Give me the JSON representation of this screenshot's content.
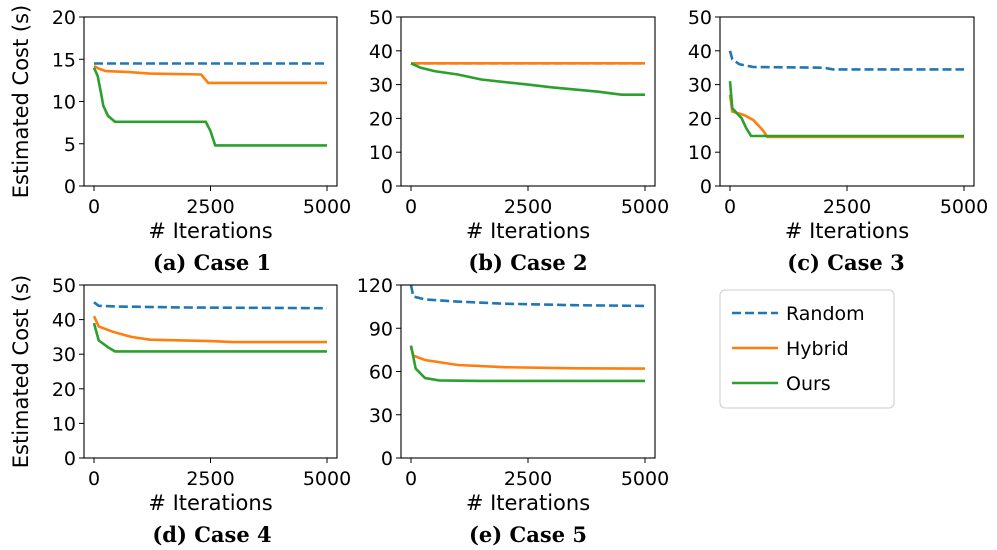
{
  "colors": {
    "random": "#1f77b4",
    "hybrid": "#ff7f0e",
    "ours": "#2ca02c"
  },
  "legend": {
    "placement": "right",
    "entries": [
      "Random",
      "Hybrid",
      "Ours"
    ]
  },
  "chart_data": [
    {
      "type": "line",
      "caption": "(a) Case 1",
      "xlabel": "# Iterations",
      "ylabel": "Estimated Cost (s)",
      "xlim": [
        0,
        5000
      ],
      "ylim": [
        0,
        20
      ],
      "xticks": [
        0,
        2500,
        5000
      ],
      "yticks": [
        0,
        5,
        10,
        15,
        20
      ],
      "series": [
        {
          "name": "Random",
          "style": "dashed",
          "points": [
            [
              0,
              14.5
            ],
            [
              5000,
              14.5
            ]
          ]
        },
        {
          "name": "Hybrid",
          "style": "solid",
          "points": [
            [
              0,
              14.2
            ],
            [
              100,
              13.9
            ],
            [
              250,
              13.6
            ],
            [
              700,
              13.5
            ],
            [
              1200,
              13.3
            ],
            [
              2300,
              13.2
            ],
            [
              2450,
              12.2
            ],
            [
              5000,
              12.2
            ]
          ]
        },
        {
          "name": "Ours",
          "style": "solid",
          "points": [
            [
              0,
              14.0
            ],
            [
              80,
              13.0
            ],
            [
              150,
              11.0
            ],
            [
              200,
              9.5
            ],
            [
              300,
              8.3
            ],
            [
              450,
              7.6
            ],
            [
              2400,
              7.6
            ],
            [
              2500,
              6.5
            ],
            [
              2600,
              4.8
            ],
            [
              5000,
              4.8
            ]
          ]
        }
      ]
    },
    {
      "type": "line",
      "caption": "(b) Case 2",
      "xlabel": "# Iterations",
      "ylabel": "",
      "xlim": [
        0,
        5000
      ],
      "ylim": [
        0,
        50
      ],
      "xticks": [
        0,
        2500,
        5000
      ],
      "yticks": [
        0,
        10,
        20,
        30,
        40,
        50
      ],
      "series": [
        {
          "name": "Random",
          "style": "dashed",
          "points": [
            [
              0,
              36.3
            ],
            [
              5000,
              36.3
            ]
          ]
        },
        {
          "name": "Hybrid",
          "style": "solid",
          "points": [
            [
              0,
              36.3
            ],
            [
              5000,
              36.3
            ]
          ]
        },
        {
          "name": "Ours",
          "style": "solid",
          "points": [
            [
              0,
              36.3
            ],
            [
              200,
              35.0
            ],
            [
              500,
              34.0
            ],
            [
              1000,
              33.0
            ],
            [
              1500,
              31.5
            ],
            [
              2500,
              30.0
            ],
            [
              3000,
              29.2
            ],
            [
              4000,
              27.9
            ],
            [
              4500,
              27.0
            ],
            [
              5000,
              27.0
            ]
          ]
        }
      ]
    },
    {
      "type": "line",
      "caption": "(c) Case 3",
      "xlabel": "# Iterations",
      "ylabel": "",
      "xlim": [
        0,
        5000
      ],
      "ylim": [
        0,
        50
      ],
      "xticks": [
        0,
        2500,
        5000
      ],
      "yticks": [
        0,
        10,
        20,
        30,
        40,
        50
      ],
      "series": [
        {
          "name": "Random",
          "style": "dashed",
          "points": [
            [
              0,
              40
            ],
            [
              50,
              37.5
            ],
            [
              200,
              36.0
            ],
            [
              500,
              35.2
            ],
            [
              2000,
              35.0
            ],
            [
              2200,
              34.5
            ],
            [
              5000,
              34.5
            ]
          ]
        },
        {
          "name": "Hybrid",
          "style": "solid",
          "points": [
            [
              0,
              27
            ],
            [
              50,
              22
            ],
            [
              300,
              21
            ],
            [
              500,
              19.5
            ],
            [
              700,
              16.5
            ],
            [
              800,
              14.5
            ],
            [
              5000,
              14.5
            ]
          ]
        },
        {
          "name": "Ours",
          "style": "solid",
          "points": [
            [
              0,
              31
            ],
            [
              50,
              23
            ],
            [
              150,
              21.5
            ],
            [
              250,
              20
            ],
            [
              350,
              17
            ],
            [
              450,
              14.8
            ],
            [
              5000,
              14.8
            ]
          ]
        }
      ]
    },
    {
      "type": "line",
      "caption": "(d) Case 4",
      "xlabel": "# Iterations",
      "ylabel": "Estimated Cost (s)",
      "xlim": [
        0,
        5000
      ],
      "ylim": [
        0,
        50
      ],
      "xticks": [
        0,
        2500,
        5000
      ],
      "yticks": [
        0,
        10,
        20,
        30,
        40,
        50
      ],
      "series": [
        {
          "name": "Random",
          "style": "dashed",
          "points": [
            [
              0,
              45
            ],
            [
              100,
              44.0
            ],
            [
              500,
              43.8
            ],
            [
              2000,
              43.5
            ],
            [
              5000,
              43.3
            ]
          ]
        },
        {
          "name": "Hybrid",
          "style": "solid",
          "points": [
            [
              0,
              41
            ],
            [
              100,
              38
            ],
            [
              400,
              36.5
            ],
            [
              800,
              35
            ],
            [
              1200,
              34.2
            ],
            [
              2500,
              33.8
            ],
            [
              3000,
              33.5
            ],
            [
              5000,
              33.5
            ]
          ]
        },
        {
          "name": "Ours",
          "style": "solid",
          "points": [
            [
              0,
              39
            ],
            [
              100,
              34
            ],
            [
              300,
              32
            ],
            [
              450,
              30.8
            ],
            [
              5000,
              30.8
            ]
          ]
        }
      ]
    },
    {
      "type": "line",
      "caption": "(e) Case 5",
      "xlabel": "# Iterations",
      "ylabel": "",
      "xlim": [
        0,
        5000
      ],
      "ylim": [
        0,
        120
      ],
      "xticks": [
        0,
        2500,
        5000
      ],
      "yticks": [
        0,
        30,
        60,
        90,
        120
      ],
      "series": [
        {
          "name": "Random",
          "style": "dashed",
          "points": [
            [
              0,
              120
            ],
            [
              50,
              112
            ],
            [
              300,
              110
            ],
            [
              1000,
              108.5
            ],
            [
              2000,
              107
            ],
            [
              3500,
              106
            ],
            [
              5000,
              105.5
            ]
          ]
        },
        {
          "name": "Hybrid",
          "style": "solid",
          "points": [
            [
              0,
              77
            ],
            [
              50,
              71
            ],
            [
              300,
              68
            ],
            [
              1000,
              64.5
            ],
            [
              2000,
              63
            ],
            [
              3500,
              62.2
            ],
            [
              5000,
              62
            ]
          ]
        },
        {
          "name": "Ours",
          "style": "solid",
          "points": [
            [
              0,
              78
            ],
            [
              100,
              62
            ],
            [
              300,
              55.5
            ],
            [
              600,
              53.8
            ],
            [
              1500,
              53.5
            ],
            [
              5000,
              53.5
            ]
          ]
        }
      ]
    }
  ]
}
